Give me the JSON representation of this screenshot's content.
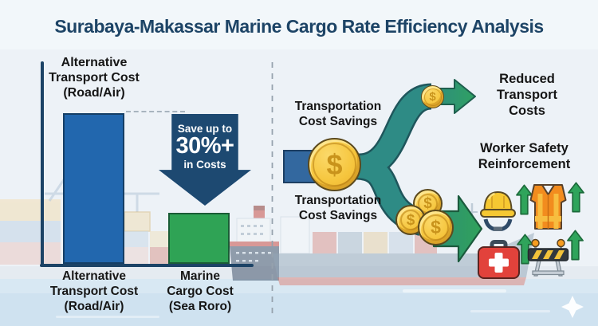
{
  "title": "Surabaya-Makassar Marine Cargo Rate Efficiency Analysis",
  "chart": {
    "top_label": "Alternative\nTransport Cost\n(Road/Air)",
    "bar_label_1": "Alternative\nTransport Cost\n(Road/Air)",
    "bar_label_2": "Marine\nCargo Cost\n(Sea Roro)",
    "callout_line1": "Save up to",
    "callout_line2": "30%+",
    "callout_line3": "in Costs",
    "bar_colors": [
      "#2267AE",
      "#2FA355"
    ],
    "bar_border_colors": [
      "#153F66",
      "#1A5C36"
    ]
  },
  "chart_data": {
    "type": "bar",
    "title": "Alternative transport cost vs marine cargo cost",
    "categories": [
      "Alternative Transport Cost (Road/Air)",
      "Marine Cargo Cost (Sea Roro)"
    ],
    "values": [
      100,
      34
    ],
    "values_unit": "relative cost, % of tallest bar (no numeric axis shown; estimated from bar heights)",
    "annotation": "Save up to 30%+ in Costs",
    "xlabel": "",
    "ylabel": "",
    "grid": false,
    "legend": false
  },
  "flow": {
    "source_label_top": "Transportation\nCost Savings",
    "source_label_bottom": "Transportation\nCost Savings",
    "outcome_label_top": "Reduced\nTransport\nCosts",
    "outcome_label_bottom": "Worker Safety\nReinforcement",
    "coin_symbol": "$"
  },
  "icons": [
    "dollar-coin-icon",
    "flow-arrow-icon",
    "up-arrow-icon",
    "hard-hat-icon",
    "safety-vest-icon",
    "first-aid-kit-icon",
    "traffic-barrier-icon"
  ],
  "colors": {
    "background": "#EDF2F7",
    "water": "#D8E8F3",
    "navy": "#1C4366",
    "callout_navy": "#1D4971",
    "bar_blue": "#2267AE",
    "bar_green": "#2FA355",
    "ribbon_teal": "#2E8B85",
    "ribbon_blue_stub": "#33689F",
    "arrow_green": "#2FA162",
    "coin_gold": "#F6C63E",
    "text_dark": "#161616"
  }
}
